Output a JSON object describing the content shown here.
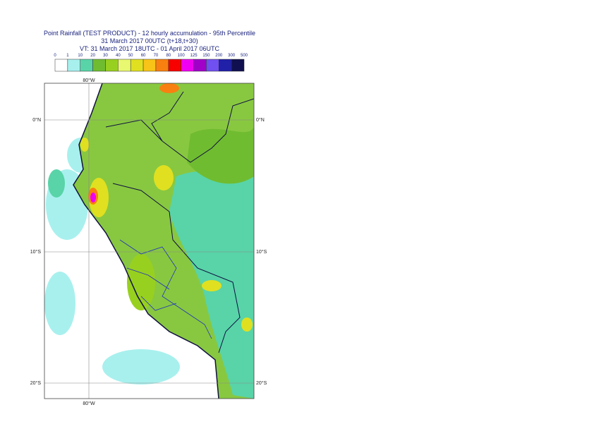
{
  "header": {
    "lines": [
      "Point Rainfall (TEST PRODUCT) - 12 hourly accumulation - 95th Percentile",
      "31 March 2017 00UTC (t+18,t+30)",
      "VT: 31 March 2017 18UTC - 01 April 2017 06UTC"
    ]
  },
  "legend": {
    "labels": [
      0,
      1,
      10,
      20,
      30,
      40,
      50,
      60,
      70,
      80,
      100,
      125,
      150,
      200,
      300,
      500
    ],
    "colors": [
      "#ffffff",
      "#a8f0ee",
      "#58d4a8",
      "#70bc30",
      "#98d020",
      "#e8f870",
      "#e0e020",
      "#f8c418",
      "#f88010",
      "#f80000",
      "#f000f0",
      "#a000c8",
      "#7050f0",
      "#2020a8",
      "#101050"
    ]
  },
  "map": {
    "lon_labels": [
      "80°W",
      "80°W"
    ],
    "lat_labels": [
      "0°N",
      "10°S",
      "20°S",
      "0°N",
      "10°S",
      "20°S"
    ]
  }
}
